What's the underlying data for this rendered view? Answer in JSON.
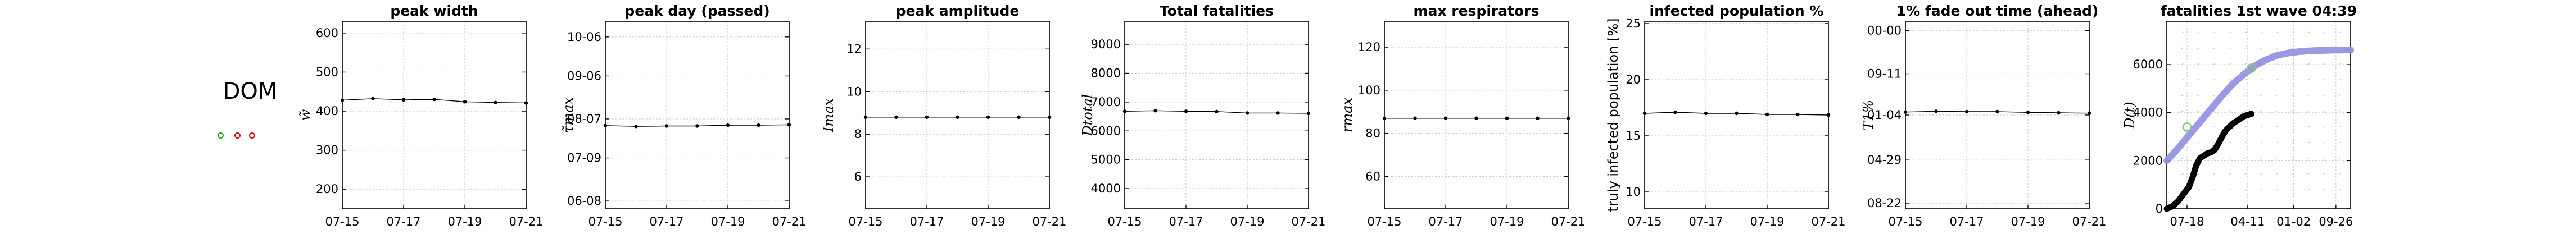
{
  "country": {
    "code": "DOM",
    "markers": [
      {
        "color": "#1aa81a"
      },
      {
        "color": "#dd0000"
      },
      {
        "color": "#dd0000"
      }
    ]
  },
  "chart_data": [
    {
      "type": "line",
      "title": "peak width",
      "ylabel": "w̃",
      "ylabel_style": "math",
      "x": [
        "07-15",
        "07-16",
        "07-17",
        "07-18",
        "07-19",
        "07-20",
        "07-21"
      ],
      "xticks": [
        "07-15",
        "07-17",
        "07-19",
        "07-21"
      ],
      "ylim": [
        150,
        630
      ],
      "yticks": [
        200,
        300,
        400,
        500,
        600
      ],
      "ytick_labels": [
        "200",
        "300",
        "400",
        "500",
        "600"
      ],
      "values": [
        428,
        432,
        429,
        430,
        424,
        422,
        421
      ],
      "grid": true
    },
    {
      "type": "line",
      "title": "peak day (passed)",
      "ylabel": "τ̃max",
      "ylabel_style": "math",
      "x": [
        "07-15",
        "07-16",
        "07-17",
        "07-18",
        "07-19",
        "07-20",
        "07-21"
      ],
      "xticks": [
        "07-15",
        "07-17",
        "07-19",
        "07-21"
      ],
      "ylim": [
        0,
        4.8
      ],
      "yticks": [
        0.2,
        1.3,
        2.3,
        3.4,
        4.4
      ],
      "ytick_labels": [
        "06-08",
        "07-09",
        "08-07",
        "09-06",
        "10-06"
      ],
      "values": [
        2.13,
        2.11,
        2.12,
        2.12,
        2.14,
        2.14,
        2.15
      ],
      "grid": true
    },
    {
      "type": "line",
      "title": "peak amplitude",
      "ylabel": "Imax",
      "ylabel_style": "math",
      "x": [
        "07-15",
        "07-16",
        "07-17",
        "07-18",
        "07-19",
        "07-20",
        "07-21"
      ],
      "xticks": [
        "07-15",
        "07-17",
        "07-19",
        "07-21"
      ],
      "ylim": [
        4.5,
        13.3
      ],
      "yticks": [
        6,
        8,
        10,
        12
      ],
      "ytick_labels": [
        "6",
        "8",
        "10",
        "12"
      ],
      "values": [
        8.8,
        8.8,
        8.8,
        8.8,
        8.8,
        8.8,
        8.8
      ],
      "grid": true
    },
    {
      "type": "line",
      "title": "Total fatalities",
      "ylabel": "Dtotal",
      "ylabel_style": "math",
      "x": [
        "07-15",
        "07-16",
        "07-17",
        "07-18",
        "07-19",
        "07-20",
        "07-21"
      ],
      "xticks": [
        "07-15",
        "07-17",
        "07-19",
        "07-21"
      ],
      "ylim": [
        3300,
        9800
      ],
      "yticks": [
        4000,
        5000,
        6000,
        7000,
        8000,
        9000
      ],
      "ytick_labels": [
        "4000",
        "5000",
        "6000",
        "7000",
        "8000",
        "9000"
      ],
      "values": [
        6680,
        6700,
        6680,
        6670,
        6620,
        6620,
        6610
      ],
      "grid": true
    },
    {
      "type": "line",
      "title": "max respirators",
      "ylabel": "rmax",
      "ylabel_style": "math",
      "x": [
        "07-15",
        "07-16",
        "07-17",
        "07-18",
        "07-19",
        "07-20",
        "07-21"
      ],
      "xticks": [
        "07-15",
        "07-17",
        "07-19",
        "07-21"
      ],
      "ylim": [
        45,
        132
      ],
      "yticks": [
        60,
        80,
        100,
        120
      ],
      "ytick_labels": [
        "60",
        "80",
        "100",
        "120"
      ],
      "values": [
        87,
        87,
        87,
        87,
        87,
        87,
        87
      ],
      "grid": true
    },
    {
      "type": "line",
      "title": "infected population %",
      "ylabel": "truly infected population [%]",
      "ylabel_style": "text",
      "x": [
        "07-15",
        "07-16",
        "07-17",
        "07-18",
        "07-19",
        "07-20",
        "07-21"
      ],
      "xticks": [
        "07-15",
        "07-17",
        "07-19",
        "07-21"
      ],
      "ylim": [
        8.5,
        25.2
      ],
      "yticks": [
        10,
        15,
        20,
        25
      ],
      "ytick_labels": [
        "10",
        "15",
        "20",
        "25"
      ],
      "values": [
        17.0,
        17.1,
        17.0,
        17.0,
        16.9,
        16.9,
        16.85
      ],
      "grid": true
    },
    {
      "type": "line",
      "title": "1% fade out time (ahead)",
      "ylabel": "T1%",
      "ylabel_style": "math",
      "x": [
        "07-15",
        "07-16",
        "07-17",
        "07-18",
        "07-19",
        "07-20",
        "07-21"
      ],
      "xticks": [
        "07-15",
        "07-17",
        "07-19",
        "07-21"
      ],
      "ylim": [
        0,
        5.0
      ],
      "yticks": [
        0.15,
        1.3,
        2.5,
        3.6,
        4.75
      ],
      "ytick_labels": [
        "08-22",
        "04-29",
        "01-04",
        "09-11",
        "00-00"
      ],
      "values": [
        2.58,
        2.6,
        2.59,
        2.59,
        2.57,
        2.56,
        2.55
      ],
      "grid": true
    },
    {
      "type": "line",
      "title": "fatalities 1st wave 04:39",
      "ylabel": "D(t)",
      "ylabel_style": "math",
      "x_range": [
        0,
        500
      ],
      "xticks": [
        55,
        220,
        345,
        460
      ],
      "xtick_labels": [
        "07-18",
        "04-11",
        "01-02",
        "09-26"
      ],
      "ylim": [
        0,
        7800
      ],
      "yticks": [
        0,
        2000,
        4000,
        6000
      ],
      "ytick_labels": [
        "0",
        "2000",
        "4000",
        "6000"
      ],
      "series": [
        {
          "role": "fit",
          "color": "#8f8fe0",
          "x": [
            0,
            30,
            60,
            90,
            120,
            150,
            180,
            210,
            240,
            270,
            300,
            330,
            360,
            400,
            450,
            500
          ],
          "y": [
            2000,
            2500,
            3050,
            3600,
            4150,
            4700,
            5200,
            5600,
            5950,
            6200,
            6380,
            6480,
            6540,
            6580,
            6600,
            6610
          ]
        },
        {
          "role": "observed",
          "color": "#000000",
          "x": [
            0,
            15,
            30,
            45,
            60,
            70,
            80,
            90,
            100,
            110,
            120,
            130,
            140,
            150,
            160,
            170,
            180,
            190,
            200,
            210,
            220,
            230
          ],
          "y": [
            0,
            100,
            300,
            600,
            900,
            1300,
            1800,
            2100,
            2200,
            2300,
            2350,
            2450,
            2700,
            3000,
            3250,
            3400,
            3550,
            3650,
            3750,
            3850,
            3900,
            3950
          ]
        },
        {
          "role": "marker",
          "color": "#7fc67f",
          "x": [
            55,
            230
          ],
          "y": [
            3400,
            5850
          ]
        }
      ],
      "grid": true,
      "background_dots": true
    }
  ]
}
